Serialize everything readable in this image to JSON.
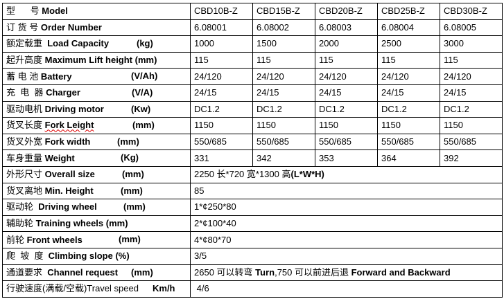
{
  "rows": [
    {
      "cn": "型      号 ",
      "en": "Model",
      "unit": "",
      "values": [
        "CBD10B-Z",
        "CBD15B-Z",
        "CBD20B-Z",
        "CBD25B-Z",
        "CBD30B-Z"
      ]
    },
    {
      "cn": "订 货 号 ",
      "en": "Order Number",
      "unit": "",
      "values": [
        "6.08001",
        "6.08002",
        "6.08003",
        "6.08004",
        "6.08005"
      ]
    },
    {
      "cn": "额定载重  ",
      "en": "Load Capacity",
      "unit": "(kg)",
      "values": [
        "1000",
        "1500",
        "2000",
        "2500",
        "3000"
      ]
    },
    {
      "cn": "起升高度 ",
      "en": "Maximum Lift height (mm)",
      "unit": "",
      "values": [
        "115",
        "115",
        "115",
        "115",
        "115"
      ]
    },
    {
      "cn": "蓄 电 池 ",
      "en": "Battery",
      "unit": "(V/Ah)",
      "values": [
        "24/120",
        "24/120",
        "24/120",
        "24/120",
        "24/120"
      ]
    },
    {
      "cn": "充  电  器 ",
      "en": "Charger",
      "unit": "(V/A)",
      "values": [
        "24/15",
        "24/15",
        "24/15",
        "24/15",
        "24/15"
      ]
    },
    {
      "cn": "驱动电机 ",
      "en": "Driving motor",
      "unit": "(Kw)",
      "values": [
        "DC1.2",
        "DC1.2",
        "DC1.2",
        "DC1.2",
        "DC1.2"
      ]
    },
    {
      "cn": "货叉长度 ",
      "en": "Fork Leight",
      "unit": "(mm)",
      "values": [
        "1150",
        "1150",
        "1150",
        "1150",
        "1150"
      ]
    },
    {
      "cn": "货叉外宽 ",
      "en": "Fork width",
      "unit": "(mm)",
      "values": [
        "550/685",
        "550/685",
        "550/685",
        "550/685",
        "550/685"
      ]
    },
    {
      "cn": "车身重量 ",
      "en": "Weight",
      "unit": "(Kg)",
      "values": [
        "331",
        "342",
        "353",
        "364",
        "392"
      ]
    },
    {
      "cn": "外形尺寸 ",
      "en": "Overall size",
      "unit": "(mm)",
      "span": "2250 长*720 宽*1300 高",
      "span_bold": "(L*W*H)"
    },
    {
      "cn": "货叉离地 ",
      "en": "Min. Height",
      "unit": "(mm)",
      "span": "85",
      "span_bold": ""
    },
    {
      "cn": "驱动轮  ",
      "en": "Driving wheel",
      "unit": "(mm)",
      "span": "1*¢250*80",
      "span_bold": ""
    },
    {
      "cn": "辅助轮 ",
      "en": "Training wheels (mm)",
      "unit": "",
      "span": "2*¢100*40",
      "span_bold": ""
    },
    {
      "cn": "前轮 ",
      "en": "Front wheels",
      "unit": "(mm)",
      "span": "4*¢80*70",
      "span_bold": ""
    },
    {
      "cn": "爬  坡  度  ",
      "en": "Climbing slope (%)",
      "unit": "",
      "span": "3/5",
      "span_bold": ""
    },
    {
      "cn": "通道要求  ",
      "en": "Channel request",
      "unit": "(mm)",
      "span": "2650 可以转弯 ",
      "span_bold": "Turn",
      "span2": ",750 可以前进后退 ",
      "span2_bold": "Forward and Backward"
    },
    {
      "cn": "行驶速度(满载/空载)",
      "en": "Travel speed",
      "en_plain": true,
      "unit": "Km/h",
      "span": " 4/6",
      "span_bold": ""
    }
  ]
}
